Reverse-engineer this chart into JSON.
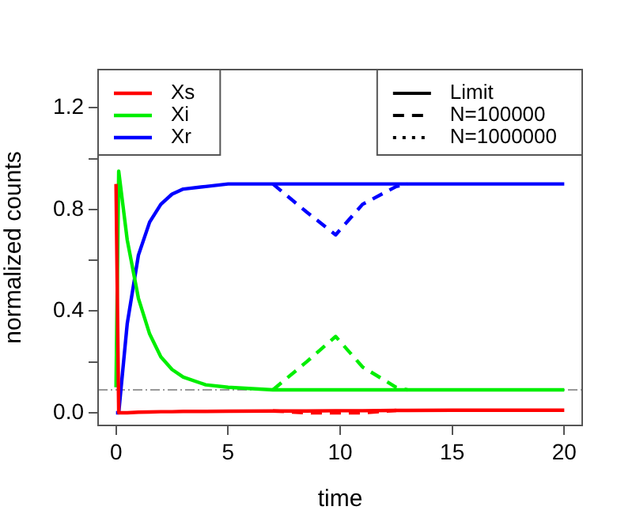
{
  "chart_data": {
    "type": "line",
    "xlabel": "time",
    "ylabel": "normalized counts",
    "x": [
      0,
      0.12,
      0.5,
      1,
      1.5,
      2,
      2.5,
      3,
      4,
      5,
      7,
      8.5,
      9.8,
      11,
      12.5,
      13,
      15,
      20
    ],
    "xlim": [
      -0.8,
      20.8
    ],
    "xticks": [
      0,
      5,
      10,
      15,
      20
    ],
    "ylim": [
      -0.05,
      1.35
    ],
    "yticks": [
      {
        "value": 0,
        "label": "0.0"
      },
      {
        "value": 0.2,
        "label": null
      },
      {
        "value": 0.4,
        "label": "0.4"
      },
      {
        "value": 0.6,
        "label": null
      },
      {
        "value": 0.8,
        "label": "0.8"
      },
      {
        "value": 1.0,
        "label": null
      },
      {
        "value": 1.2,
        "label": "1.2"
      }
    ],
    "grid": false,
    "legend": "top",
    "marker": "none",
    "annotations": [
      "Limit",
      "N=100000",
      "N=1000000"
    ],
    "ref_lines": [
      {
        "axis": "y",
        "value": 0.09,
        "color": "#999999"
      }
    ],
    "series": [
      {
        "color": "#ff0000",
        "line_style": "dashed",
        "values": [
          null,
          null,
          null,
          null,
          null,
          null,
          null,
          null,
          null,
          null,
          0.007,
          0,
          0,
          0,
          0.009,
          null,
          null,
          null
        ]
      },
      {
        "color": "#00ee00",
        "line_style": "dashed",
        "values": [
          null,
          null,
          null,
          null,
          null,
          null,
          null,
          null,
          null,
          null,
          0.09,
          0.2,
          0.3,
          0.18,
          0.1,
          0.09,
          null,
          null
        ]
      },
      {
        "color": "#0000ff",
        "line_style": "dashed",
        "values": [
          null,
          null,
          null,
          null,
          null,
          null,
          null,
          null,
          null,
          null,
          0.9,
          0.79,
          0.7,
          0.82,
          0.89,
          0.9,
          null,
          null
        ]
      },
      {
        "name": "Xs",
        "color": "#ff0000",
        "line_style": "solid",
        "values": [
          0.9,
          0,
          0,
          0.002,
          0.003,
          0.004,
          0.004,
          0.005,
          0.005,
          0.006,
          0.007,
          0.007,
          0.008,
          0.008,
          0.009,
          0.009,
          0.01,
          0.01
        ]
      },
      {
        "name": "Xi",
        "color": "#00ee00",
        "line_style": "solid",
        "values": [
          0.1,
          0.95,
          0.68,
          0.45,
          0.31,
          0.22,
          0.17,
          0.14,
          0.11,
          0.1,
          0.09,
          0.09,
          0.09,
          0.09,
          0.09,
          0.09,
          0.09,
          0.09
        ]
      },
      {
        "name": "Xr",
        "color": "#0000ff",
        "line_style": "solid",
        "values": [
          0,
          0,
          0.35,
          0.62,
          0.75,
          0.82,
          0.86,
          0.88,
          0.89,
          0.9,
          0.9,
          0.9,
          0.9,
          0.9,
          0.9,
          0.9,
          0.9,
          0.9
        ]
      }
    ]
  }
}
